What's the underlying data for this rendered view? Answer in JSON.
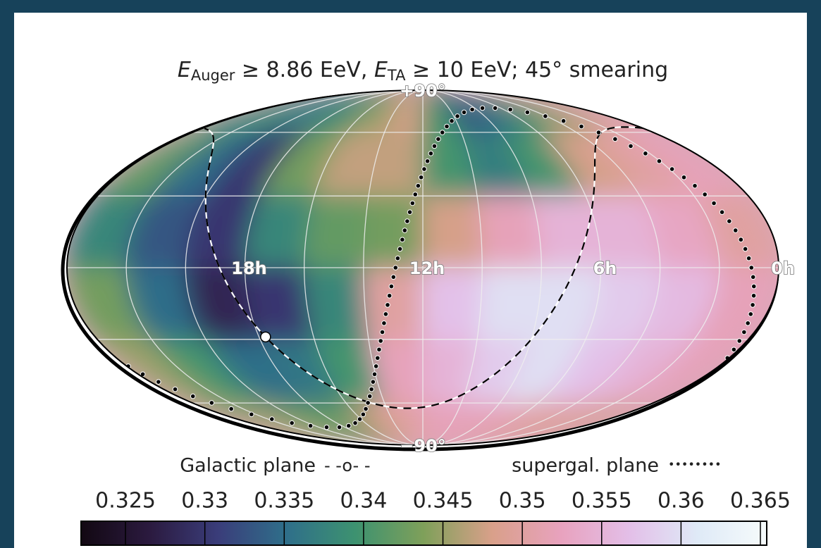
{
  "chart_data": {
    "type": "skymap",
    "projection": "mollweide",
    "title_parts": [
      "E",
      "Auger",
      " ≥ 8.86 EeV, ",
      "E",
      "TA",
      " ≥ 10 EeV; 45° smearing"
    ],
    "x": [
      23,
      21,
      19,
      17,
      15,
      13,
      11,
      9,
      7,
      5,
      3,
      1
    ],
    "y": [
      75,
      45,
      15,
      -15,
      -45,
      -75
    ],
    "values": [
      [
        0.34,
        0.338,
        0.335,
        0.34,
        0.345,
        0.348,
        0.34,
        0.333,
        0.335,
        0.34,
        0.345,
        0.35
      ],
      [
        0.342,
        0.335,
        0.33,
        0.343,
        0.347,
        0.347,
        0.34,
        0.337,
        0.34,
        0.348,
        0.35,
        0.352
      ],
      [
        0.338,
        0.333,
        0.33,
        0.338,
        0.342,
        0.343,
        0.348,
        0.352,
        0.355,
        0.355,
        0.353,
        0.35
      ],
      [
        0.343,
        0.335,
        0.328,
        0.33,
        0.338,
        0.35,
        0.357,
        0.36,
        0.36,
        0.358,
        0.356,
        0.352
      ],
      [
        0.345,
        0.34,
        0.335,
        0.336,
        0.34,
        0.352,
        0.355,
        0.358,
        0.36,
        0.357,
        0.355,
        0.352
      ],
      [
        0.345,
        0.345,
        0.342,
        0.342,
        0.348,
        0.35,
        0.352,
        0.352,
        0.352,
        0.35,
        0.35,
        0.348
      ]
    ],
    "clim": [
      0.3222,
      0.3654
    ],
    "colormap": [
      "#120812",
      "#2b1a3f",
      "#3a3d7a",
      "#2f6f8a",
      "#3d9270",
      "#7fa05a",
      "#d9a08a",
      "#e8a2be",
      "#e3bfe8",
      "#dfeaf7",
      "#f6fbfb"
    ],
    "colorbar_ticks": [
      0.325,
      0.33,
      0.335,
      0.34,
      0.345,
      0.35,
      0.355,
      0.36,
      0.365
    ],
    "grid_ra": [
      2,
      4,
      6,
      8,
      10,
      12,
      14,
      16,
      18,
      20,
      22
    ],
    "grid_dec": [
      -60,
      -30,
      0,
      30,
      60
    ],
    "ra_labels": [
      {
        "value": 18,
        "label": "18h"
      },
      {
        "value": 12,
        "label": "12h"
      },
      {
        "value": 6,
        "label": "6h"
      },
      {
        "value": 0,
        "label": "0h"
      }
    ],
    "dec_labels": [
      {
        "value": 90,
        "label": "+90°"
      },
      {
        "value": -90,
        "label": "−90°"
      }
    ],
    "overlays": [
      {
        "name": "Galactic plane",
        "sample": "- -o- -",
        "style": "dashed",
        "pole_ra": 192.86,
        "pole_dec": 27.13,
        "marker_ra": 266.4,
        "marker_dec": -28.94
      },
      {
        "name": "supergal. plane",
        "sample": "••••••••",
        "style": "dotted",
        "pole_ra": 283.8,
        "pole_dec": 15.7
      }
    ]
  }
}
